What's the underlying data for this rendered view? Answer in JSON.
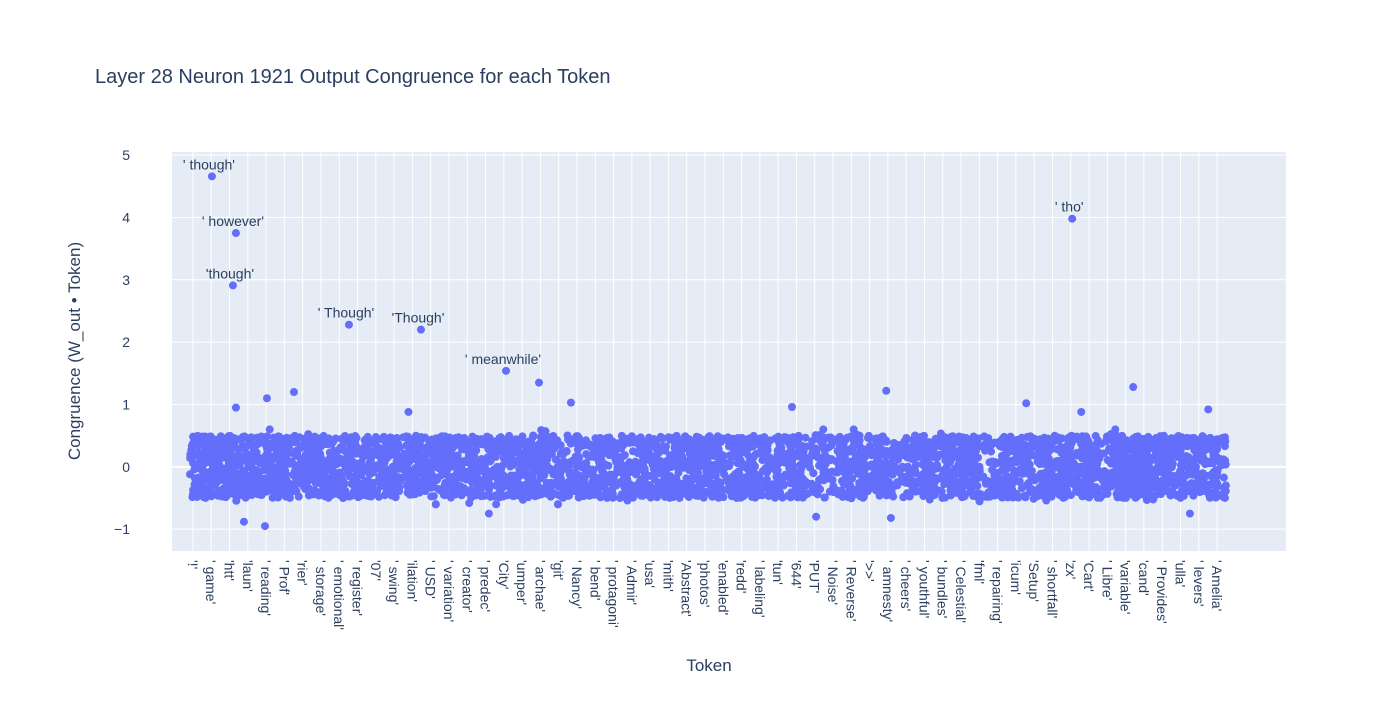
{
  "chart_data": {
    "type": "scatter",
    "title": "Layer 28 Neuron 1921 Output Congruence for each Token",
    "xlabel": "Token",
    "ylabel": "Congruence (W_out • Token)",
    "ylim": [
      -1.35,
      5.05
    ],
    "xlim": [
      -870,
      53160
    ],
    "y_ticks": [
      -1,
      0,
      1,
      2,
      3,
      4,
      5
    ],
    "x_tick_start": 145,
    "x_tick_step": 887,
    "x_tick_labels": [
      "'!'",
      "' game'",
      "'htt'",
      "'laun'",
      "' reading'",
      "' Prof'",
      "'rier'",
      "' storage'",
      "' emotional'",
      "' register'",
      "'07'",
      "' swing'",
      "'ilation'",
      "' USD'",
      "' variation'",
      "' creator'",
      "' predec'",
      "'City'",
      "'umper'",
      "' archae'",
      "'git'",
      "' Nancy'",
      "' bend'",
      "' protagoni'",
      "' Admir'",
      "'usa'",
      "'mith'",
      "'Abstract'",
      "'photos'",
      "'enabled'",
      "'redd'",
      "' labeling'",
      "'tun'",
      "'644'",
      "'PUT'",
      "' Noise'",
      "' Reverse'",
      "'>>'",
      "' amnesty'",
      "' cheers'",
      "' youthful'",
      "' bundles'",
      "' Celestial'",
      "'fml'",
      "' repairing'",
      "'icum'",
      "'Setup'",
      "' shortfall'",
      "'zx'",
      "'Cart'",
      "' Libre'",
      "'variable'",
      "'cand'",
      "' Provides'",
      "'ulla'",
      "' levers'",
      "' Amelia'"
    ],
    "grid": true,
    "marker_color": "#636efa",
    "labeled_points": [
      {
        "token": "' though'",
        "x": 1067,
        "y": 4.66
      },
      {
        "token": "' however'",
        "x": 2231,
        "y": 3.75
      },
      {
        "token": "'though'",
        "x": 2086,
        "y": 2.91
      },
      {
        "token": "' Though'",
        "x": 7713,
        "y": 2.28
      },
      {
        "token": "'Though'",
        "x": 11206,
        "y": 2.2
      },
      {
        "token": "' meanwhile'",
        "x": 15330,
        "y": 1.54
      },
      {
        "token": "' tho'",
        "x": 42790,
        "y": 3.98
      }
    ],
    "other_outliers": [
      {
        "x": 16930,
        "y": 1.35
      },
      {
        "x": 18480,
        "y": 1.03
      },
      {
        "x": 5045,
        "y": 1.2
      },
      {
        "x": 3735,
        "y": 1.1
      },
      {
        "x": 2230,
        "y": 0.95
      },
      {
        "x": 33770,
        "y": 1.22
      },
      {
        "x": 45750,
        "y": 1.28
      },
      {
        "x": 40560,
        "y": 1.02
      },
      {
        "x": 29200,
        "y": 0.96
      },
      {
        "x": 43230,
        "y": 0.88
      },
      {
        "x": 49390,
        "y": 0.92
      },
      {
        "x": 10600,
        "y": 0.88
      },
      {
        "x": 3640,
        "y": -0.95
      },
      {
        "x": 2620,
        "y": -0.88
      },
      {
        "x": 30370,
        "y": -0.8
      },
      {
        "x": 14500,
        "y": -0.75
      },
      {
        "x": 34000,
        "y": -0.82
      },
      {
        "x": 48500,
        "y": -0.75
      }
    ],
    "bulk_distribution": {
      "x_range": [
        0,
        50256
      ],
      "y_mean": 0.0,
      "y_std": 0.18,
      "y_min": -0.6,
      "y_max": 0.6
    }
  },
  "colors": {
    "plot_bg": "#e5ecf6",
    "grid": "#ffffff",
    "marker": "#636efa",
    "text": "#2a3f5f"
  }
}
